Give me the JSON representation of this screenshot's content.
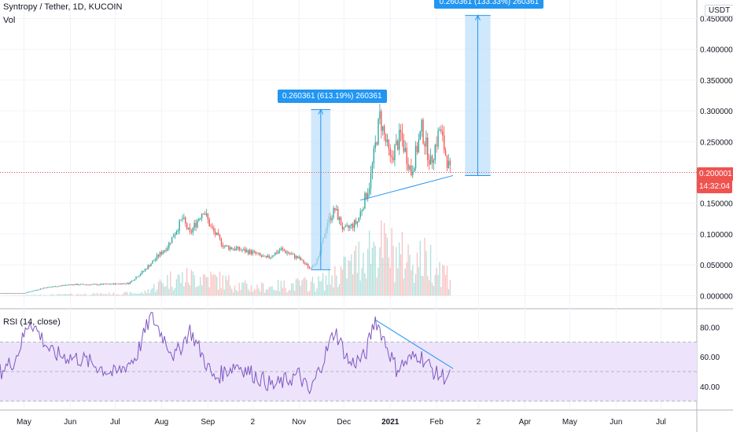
{
  "header": {
    "symbol": "Syntropy / Tether, 1D, KUCOIN",
    "vol_label": "Vol",
    "currency": "USDT"
  },
  "rsi_panel": {
    "label": "RSI (14, close)"
  },
  "price_tag": {
    "value": "0.200001",
    "countdown": "14:32:04",
    "color": "#ef5350"
  },
  "projection_labels": [
    {
      "text": "0.260361 (613.19%) 260361"
    },
    {
      "text": "0.260361 (133.33%) 260361"
    }
  ],
  "colors": {
    "up": "#26a69a",
    "down": "#ef5350",
    "rsi_line": "#7e57c2",
    "rsi_band": "#ede4fb",
    "projection": "#2196f3",
    "projection_fill": "#bbdefb",
    "trendline": "#2196f3"
  },
  "chart_data": [
    {
      "type": "candlestick",
      "title": "Syntropy / Tether, 1D, KUCOIN",
      "ylim": [
        -0.02,
        0.48
      ],
      "y_ticks": [
        "0.450000",
        "0.400000",
        "0.350000",
        "0.300000",
        "0.250000",
        "0.200000",
        "0.150000",
        "0.100000",
        "0.050000",
        "0.000000"
      ],
      "x_ticks": [
        "May",
        "Jun",
        "Jul",
        "Aug",
        "Sep",
        "2",
        "Nov",
        "Dec",
        "2021",
        "Feb",
        "2",
        "Apr",
        "May",
        "Jun",
        "Jul"
      ],
      "x_range": [
        "2020-04-15",
        "2021-07-25"
      ],
      "last_price": 0.200001,
      "close_anchors": [
        {
          "date": "2020-04-15",
          "close": 0.004
        },
        {
          "date": "2020-05-01",
          "close": 0.004
        },
        {
          "date": "2020-05-15",
          "close": 0.013
        },
        {
          "date": "2020-06-01",
          "close": 0.018
        },
        {
          "date": "2020-06-20",
          "close": 0.018
        },
        {
          "date": "2020-07-10",
          "close": 0.02
        },
        {
          "date": "2020-07-20",
          "close": 0.04
        },
        {
          "date": "2020-07-28",
          "close": 0.06
        },
        {
          "date": "2020-08-05",
          "close": 0.08
        },
        {
          "date": "2020-08-15",
          "close": 0.125
        },
        {
          "date": "2020-08-20",
          "close": 0.1
        },
        {
          "date": "2020-08-29",
          "close": 0.14
        },
        {
          "date": "2020-09-03",
          "close": 0.11
        },
        {
          "date": "2020-09-12",
          "close": 0.08
        },
        {
          "date": "2020-10-01",
          "close": 0.07
        },
        {
          "date": "2020-10-10",
          "close": 0.06
        },
        {
          "date": "2020-10-20",
          "close": 0.075
        },
        {
          "date": "2020-11-01",
          "close": 0.06
        },
        {
          "date": "2020-11-08",
          "close": 0.045
        },
        {
          "date": "2020-11-14",
          "close": 0.06
        },
        {
          "date": "2020-11-20",
          "close": 0.12
        },
        {
          "date": "2020-11-25",
          "close": 0.14
        },
        {
          "date": "2020-12-01",
          "close": 0.105
        },
        {
          "date": "2020-12-10",
          "close": 0.12
        },
        {
          "date": "2020-12-18",
          "close": 0.18
        },
        {
          "date": "2020-12-25",
          "close": 0.29
        },
        {
          "date": "2021-01-01",
          "close": 0.22
        },
        {
          "date": "2021-01-08",
          "close": 0.26
        },
        {
          "date": "2021-01-15",
          "close": 0.2
        },
        {
          "date": "2021-01-22",
          "close": 0.27
        },
        {
          "date": "2021-01-28",
          "close": 0.215
        },
        {
          "date": "2021-02-03",
          "close": 0.27
        },
        {
          "date": "2021-02-10",
          "close": 0.2
        }
      ],
      "volume_anchors": [
        {
          "date": "2020-04-15",
          "v": 0.0
        },
        {
          "date": "2020-07-20",
          "v": 0.004
        },
        {
          "date": "2020-08-05",
          "v": 0.025
        },
        {
          "date": "2020-08-29",
          "v": 0.03
        },
        {
          "date": "2020-10-01",
          "v": 0.012
        },
        {
          "date": "2020-11-15",
          "v": 0.02
        },
        {
          "date": "2020-12-05",
          "v": 0.045
        },
        {
          "date": "2020-12-20",
          "v": 0.08
        },
        {
          "date": "2021-01-10",
          "v": 0.06
        },
        {
          "date": "2021-01-28",
          "v": 0.055
        },
        {
          "date": "2021-02-10",
          "v": 0.03
        }
      ],
      "projections": [
        {
          "from_date": "2020-11-09",
          "to_date": "2020-11-22",
          "low": 0.042,
          "high": 0.302,
          "label": "0.260361 (613.19%) 260361"
        },
        {
          "from_date": "2021-02-20",
          "to_date": "2021-03-09",
          "low": 0.195,
          "high": 0.455,
          "label": "0.260361 (133.33%) 260361"
        }
      ],
      "support_trendline": [
        {
          "date": "2020-12-12",
          "value": 0.155
        },
        {
          "date": "2021-02-12",
          "value": 0.195
        }
      ]
    },
    {
      "type": "line",
      "title": "RSI (14, close)",
      "ylim": [
        25,
        92
      ],
      "y_ticks": [
        "80.00",
        "60.00",
        "40.00"
      ],
      "band": [
        30,
        70
      ],
      "rsi_anchors": [
        {
          "date": "2020-04-15",
          "v": 50
        },
        {
          "date": "2020-04-25",
          "v": 58
        },
        {
          "date": "2020-05-05",
          "v": 85
        },
        {
          "date": "2020-05-20",
          "v": 62
        },
        {
          "date": "2020-06-10",
          "v": 58
        },
        {
          "date": "2020-07-01",
          "v": 48
        },
        {
          "date": "2020-07-15",
          "v": 60
        },
        {
          "date": "2020-07-25",
          "v": 88
        },
        {
          "date": "2020-08-10",
          "v": 60
        },
        {
          "date": "2020-08-20",
          "v": 78
        },
        {
          "date": "2020-09-05",
          "v": 45
        },
        {
          "date": "2020-09-20",
          "v": 55
        },
        {
          "date": "2020-10-15",
          "v": 40
        },
        {
          "date": "2020-11-01",
          "v": 48
        },
        {
          "date": "2020-11-08",
          "v": 35
        },
        {
          "date": "2020-11-25",
          "v": 78
        },
        {
          "date": "2020-12-05",
          "v": 55
        },
        {
          "date": "2020-12-15",
          "v": 60
        },
        {
          "date": "2020-12-22",
          "v": 86
        },
        {
          "date": "2021-01-05",
          "v": 52
        },
        {
          "date": "2021-01-20",
          "v": 62
        },
        {
          "date": "2021-02-01",
          "v": 48
        },
        {
          "date": "2021-02-10",
          "v": 46
        }
      ],
      "resistance_trendline": [
        {
          "date": "2020-12-22",
          "value": 85
        },
        {
          "date": "2021-02-12",
          "value": 52
        }
      ]
    }
  ]
}
